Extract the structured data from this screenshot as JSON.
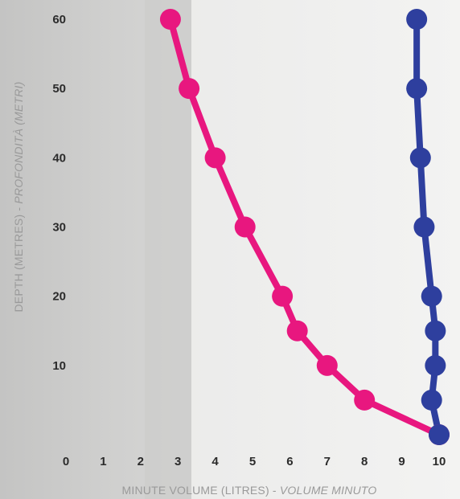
{
  "chart_data": {
    "type": "line",
    "xlabel": "MINUTE VOLUME (LITRES) - ",
    "xlabel_italic": "VOLUME MINUTO",
    "ylabel": "DEPTH (METRES) - ",
    "ylabel_italic": "PROFONDITÀ (METRI)",
    "xlim": [
      0,
      10
    ],
    "ylim": [
      0,
      60
    ],
    "x_ticks": [
      "0",
      "1",
      "2",
      "3",
      "4",
      "5",
      "6",
      "7",
      "8",
      "9",
      "10"
    ],
    "y_ticks": [
      "10",
      "20",
      "30",
      "40",
      "50",
      "60"
    ],
    "grid": false,
    "series": [
      {
        "color": "#e8177f",
        "points": [
          {
            "x": 10.0,
            "y": 0
          },
          {
            "x": 8.0,
            "y": 5
          },
          {
            "x": 7.0,
            "y": 10
          },
          {
            "x": 6.2,
            "y": 15
          },
          {
            "x": 5.8,
            "y": 20
          },
          {
            "x": 4.8,
            "y": 30
          },
          {
            "x": 4.0,
            "y": 40
          },
          {
            "x": 3.3,
            "y": 50
          },
          {
            "x": 2.8,
            "y": 60
          }
        ]
      },
      {
        "color": "#2e3f9e",
        "points": [
          {
            "x": 10.0,
            "y": 0
          },
          {
            "x": 9.8,
            "y": 5
          },
          {
            "x": 9.9,
            "y": 10
          },
          {
            "x": 9.9,
            "y": 15
          },
          {
            "x": 9.8,
            "y": 20
          },
          {
            "x": 9.6,
            "y": 30
          },
          {
            "x": 9.5,
            "y": 40
          },
          {
            "x": 9.4,
            "y": 50
          },
          {
            "x": 9.4,
            "y": 60
          }
        ]
      }
    ]
  }
}
